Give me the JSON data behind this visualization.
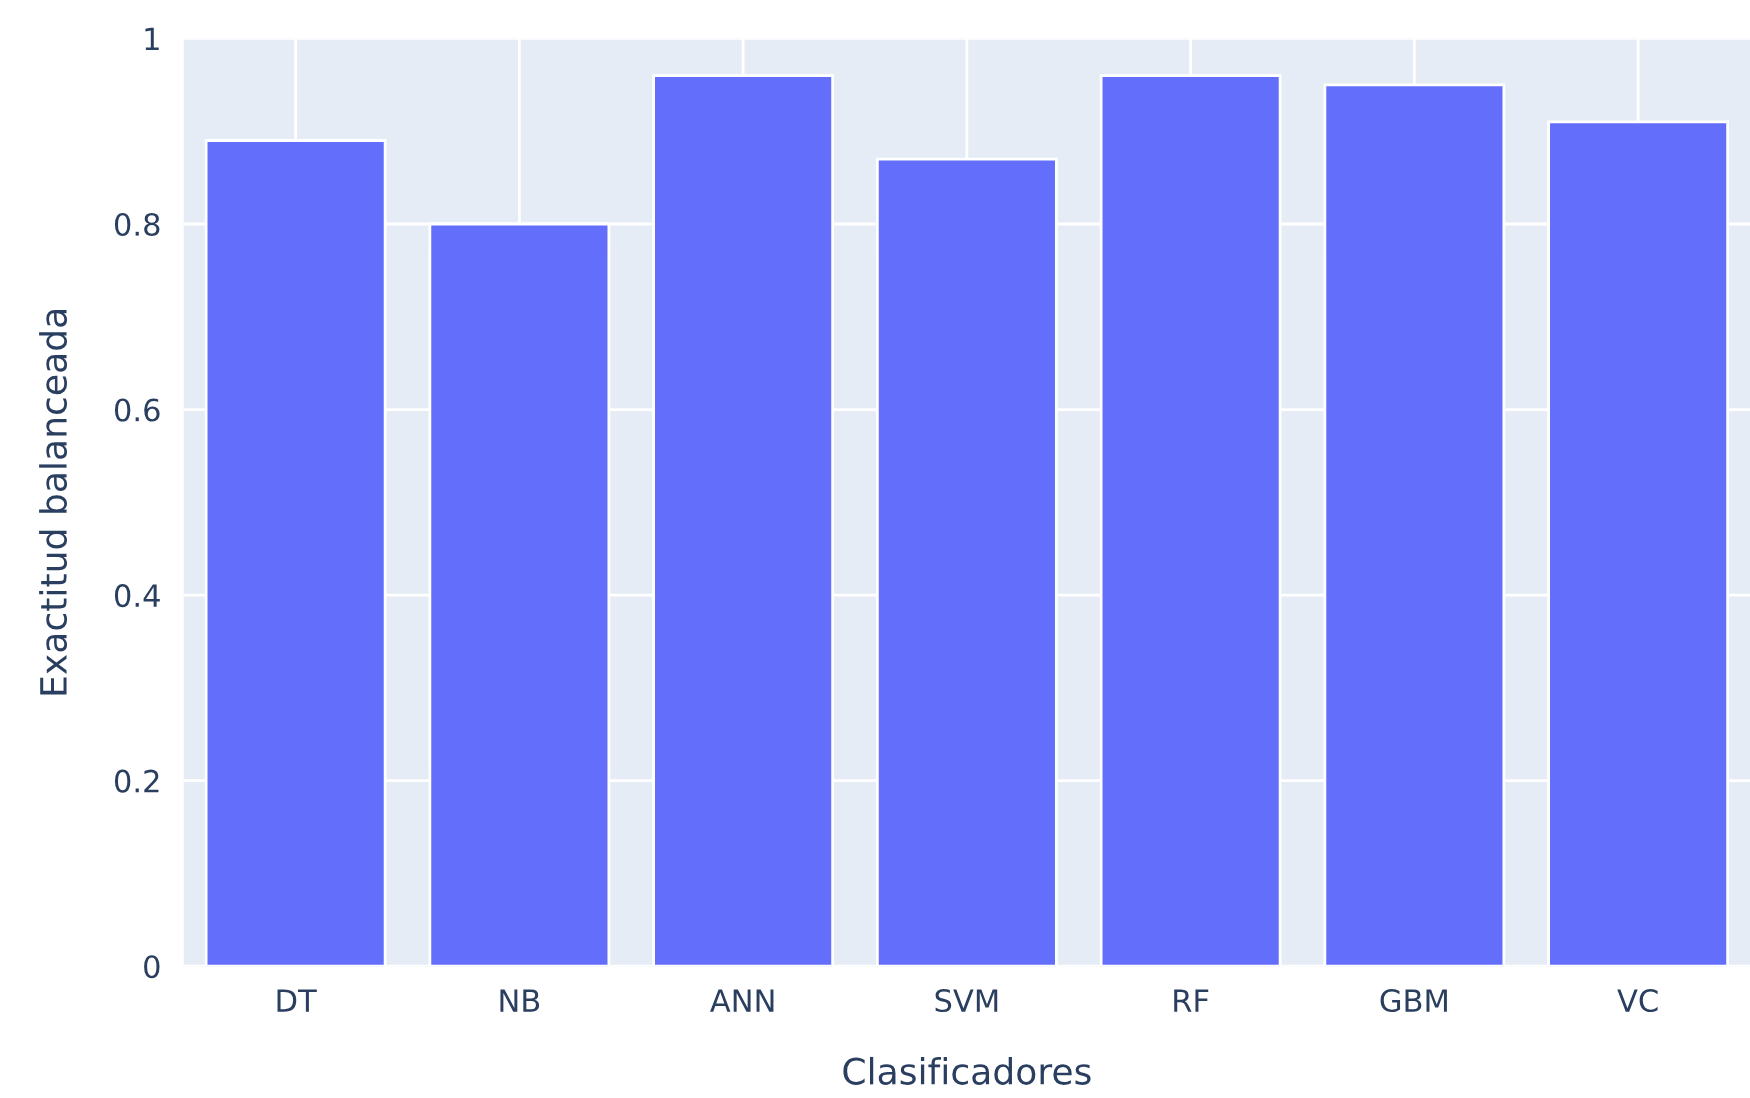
{
  "chart_data": {
    "type": "bar",
    "xlabel": "Clasificadores",
    "ylabel": "Exactitud balanceada",
    "categories": [
      "DT",
      "NB",
      "ANN",
      "SVM",
      "RF",
      "GBM",
      "VC"
    ],
    "values": [
      0.89,
      0.8,
      0.96,
      0.87,
      0.96,
      0.95,
      0.91
    ],
    "color": "#636efa",
    "ylim": [
      0,
      1
    ],
    "yticks": [
      0,
      0.2,
      0.4,
      0.6,
      0.8,
      1
    ],
    "grid": true
  }
}
